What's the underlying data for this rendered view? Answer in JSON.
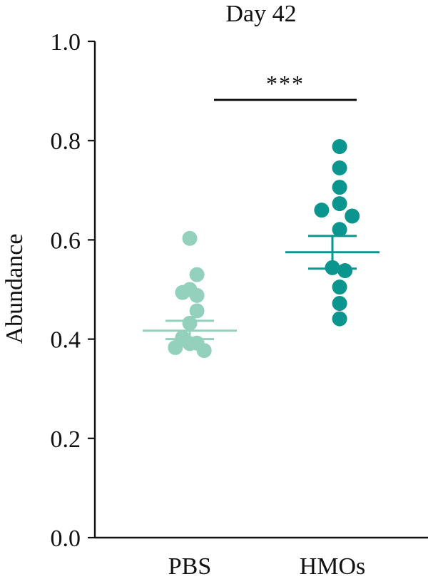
{
  "chart_data": {
    "type": "scatter",
    "title": "Day 42",
    "xlabel": "",
    "ylabel": "Abundance",
    "ylim": [
      0.0,
      1.0
    ],
    "yticks": [
      0.0,
      0.2,
      0.4,
      0.6,
      0.8,
      1.0
    ],
    "ytick_labels": [
      "0.0",
      "0.2",
      "0.4",
      "0.6",
      "0.8",
      "1.0"
    ],
    "categories": [
      "PBS",
      "HMOs"
    ],
    "grid": false,
    "series": [
      {
        "category": "PBS",
        "color": "#93d1bd",
        "mean": 0.417,
        "sem_low": 0.4,
        "sem_high": 0.437,
        "points": [
          {
            "jitter": 0.0,
            "y": 0.603
          },
          {
            "jitter": -0.28,
            "y": 0.494
          },
          {
            "jitter": 0.0,
            "y": 0.5
          },
          {
            "jitter": 0.28,
            "y": 0.53
          },
          {
            "jitter": 0.28,
            "y": 0.488
          },
          {
            "jitter": 0.28,
            "y": 0.457
          },
          {
            "jitter": 0.0,
            "y": 0.432
          },
          {
            "jitter": -0.28,
            "y": 0.403
          },
          {
            "jitter": 0.0,
            "y": 0.391
          },
          {
            "jitter": 0.28,
            "y": 0.392
          },
          {
            "jitter": -0.56,
            "y": 0.383
          },
          {
            "jitter": 0.56,
            "y": 0.377
          }
        ]
      },
      {
        "category": "HMOs",
        "color": "#0a968e",
        "mean": 0.575,
        "sem_low": 0.542,
        "sem_high": 0.608,
        "points": [
          {
            "jitter": 0.28,
            "y": 0.788
          },
          {
            "jitter": 0.28,
            "y": 0.745
          },
          {
            "jitter": 0.28,
            "y": 0.706
          },
          {
            "jitter": 0.28,
            "y": 0.673
          },
          {
            "jitter": -0.42,
            "y": 0.66
          },
          {
            "jitter": 0.77,
            "y": 0.648
          },
          {
            "jitter": 0.28,
            "y": 0.621
          },
          {
            "jitter": 0.0,
            "y": 0.544
          },
          {
            "jitter": 0.49,
            "y": 0.538
          },
          {
            "jitter": 0.28,
            "y": 0.505
          },
          {
            "jitter": 0.28,
            "y": 0.472
          },
          {
            "jitter": 0.28,
            "y": 0.441
          }
        ]
      }
    ],
    "significance": {
      "label": "***",
      "from": "PBS",
      "to": "HMOs",
      "y": 0.882
    }
  }
}
